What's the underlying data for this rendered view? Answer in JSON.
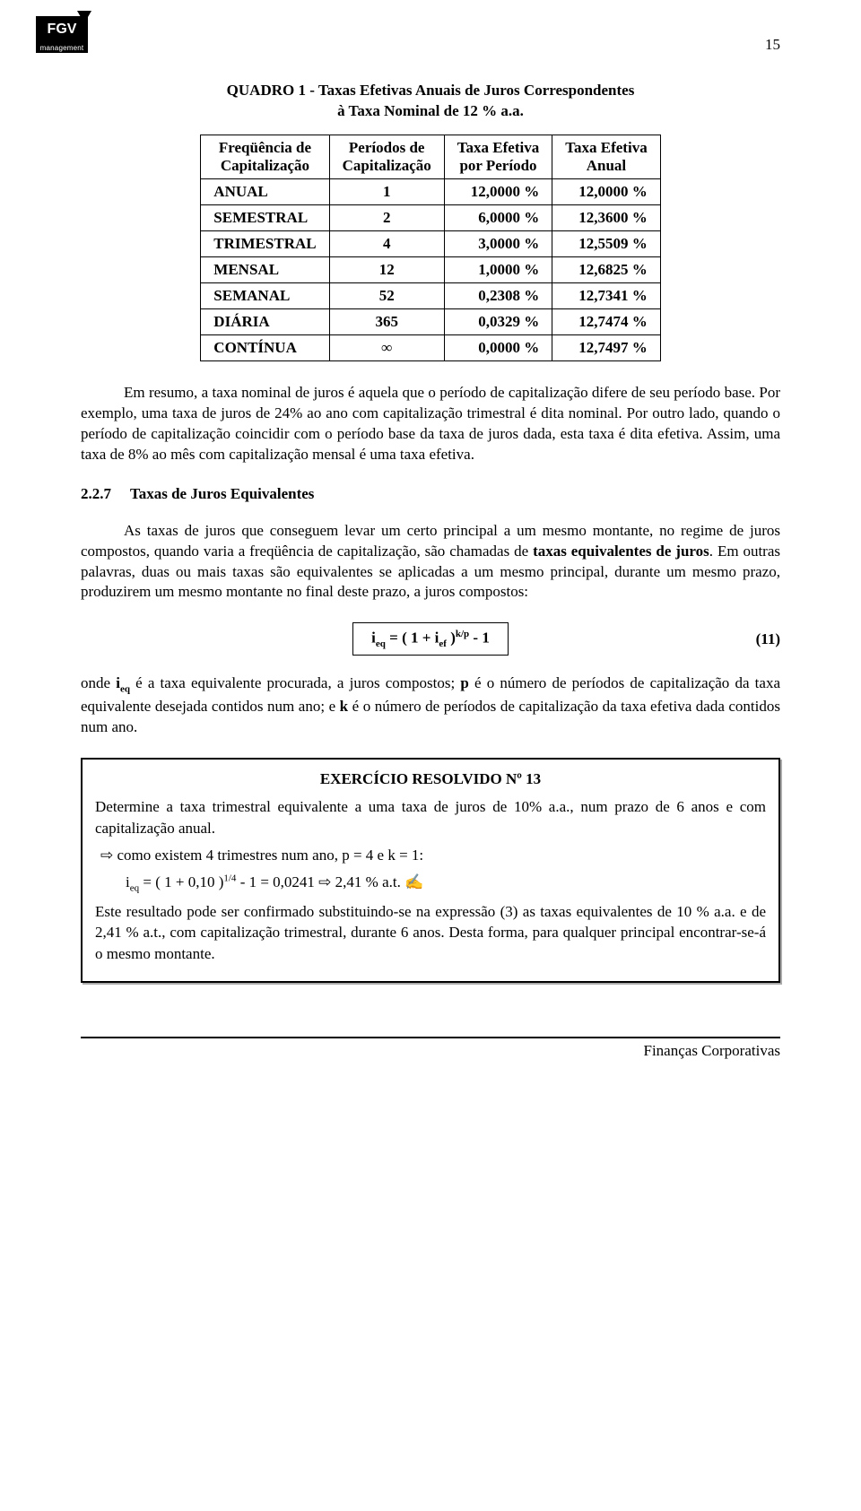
{
  "page_number": "15",
  "logo": {
    "top": "FGV",
    "bottom": "management"
  },
  "table": {
    "title_line1": "QUADRO 1 - Taxas Efetivas Anuais de Juros Correspondentes",
    "title_line2": "à Taxa Nominal de 12 % a.a.",
    "header": {
      "c1a": "Freqüência de",
      "c1b": "Capitalização",
      "c2a": "Períodos de",
      "c2b": "Capitalização",
      "c3a": "Taxa Efetiva",
      "c3b": "por Período",
      "c4a": "Taxa Efetiva",
      "c4b": "Anual"
    },
    "rows": [
      {
        "c1": "ANUAL",
        "c2": "1",
        "c3": "12,0000 %",
        "c4": "12,0000 %"
      },
      {
        "c1": "SEMESTRAL",
        "c2": "2",
        "c3": "6,0000 %",
        "c4": "12,3600 %"
      },
      {
        "c1": "TRIMESTRAL",
        "c2": "4",
        "c3": "3,0000 %",
        "c4": "12,5509 %"
      },
      {
        "c1": "MENSAL",
        "c2": "12",
        "c3": "1,0000 %",
        "c4": "12,6825 %"
      },
      {
        "c1": "SEMANAL",
        "c2": "52",
        "c3": "0,2308 %",
        "c4": "12,7341 %"
      },
      {
        "c1": "DIÁRIA",
        "c2": "365",
        "c3": "0,0329 %",
        "c4": "12,7474 %"
      },
      {
        "c1": "CONTÍNUA",
        "c2": "∞",
        "c3": "0,0000 %",
        "c4": "12,7497 %"
      }
    ]
  },
  "para1": "Em resumo, a taxa nominal de juros é aquela que o período de capitalização difere de seu período base. Por exemplo, uma taxa de juros de 24% ao ano com capitalização trimestral é dita nominal. Por outro lado, quando o período de capitalização coincidir com o período base da taxa de juros dada, esta taxa é dita efetiva. Assim, uma taxa de 8% ao mês com capitalização mensal é uma taxa efetiva.",
  "section": {
    "number": "2.2.7",
    "title": "Taxas de Juros Equivalentes"
  },
  "para2_a": "As taxas de juros que conseguem levar um certo principal a um mesmo montante, no regime de juros compostos, quando varia a freqüência de capitalização, são chamadas de ",
  "para2_bold": "taxas equivalentes de juros",
  "para2_b": ". Em outras palavras, duas ou  mais taxas são equivalentes se aplicadas a um mesmo principal, durante um mesmo prazo, produzirem um mesmo montante no final deste prazo, a juros compostos:",
  "formula": {
    "lhs_i": "i",
    "lhs_sub": "eq",
    "eq": "  =  ( 1 + i",
    "ef_sub": "ef",
    "close": " )",
    "exp": "k/p",
    "tail": "   - 1",
    "num": "(11)"
  },
  "para3_a": "onde ",
  "para3_ieq": "i",
  "para3_ieq_sub": "eq",
  "para3_b": " é a taxa equivalente procurada, a juros compostos; ",
  "para3_p": "p",
  "para3_c": " é o número de períodos de capitalização da taxa equivalente desejada contidos num ano; e ",
  "para3_k": "k",
  "para3_d": " é o número de períodos de capitalização da taxa efetiva dada contidos num ano.",
  "exercise": {
    "title": "EXERCÍCIO RESOLVIDO Nº 13",
    "p1": "Determine a taxa trimestral equivalente a uma taxa de juros de 10% a.a., num prazo de 6 anos e com capitalização anual.",
    "bullet1": "⇨ como existem 4 trimestres num ano, p = 4 e  k = 1:",
    "calc_pre": "i",
    "calc_sub": "eq",
    "calc_mid": "  =  ( 1 + 0,10 )",
    "calc_exp": "1/4",
    "calc_post": " - 1 = 0,0241  ⇨  2,41 % a.t.   ✍",
    "p2": "Este resultado pode ser confirmado substituindo-se na expressão (3) as taxas equivalentes de 10 % a.a. e de 2,41 % a.t., com capitalização trimestral, durante 6 anos. Desta forma, para qualquer principal encontrar-se-á o mesmo montante."
  },
  "footer": "Finanças Corporativas"
}
